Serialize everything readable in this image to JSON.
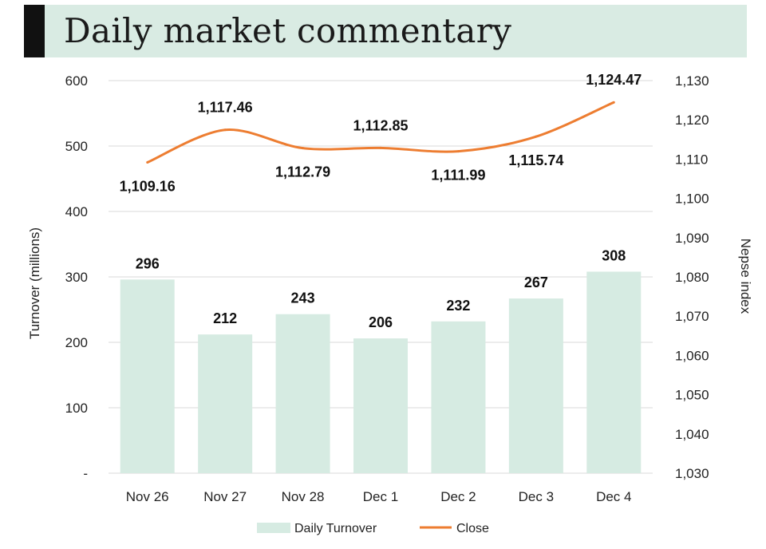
{
  "title": "Daily market commentary",
  "chart_data": {
    "type": "bar+line",
    "categories": [
      "Nov 26",
      "Nov 27",
      "Nov 28",
      "Dec 1",
      "Dec 2",
      "Dec 3",
      "Dec 4"
    ],
    "series": [
      {
        "name": "Daily Turnover",
        "type": "bar",
        "axis": "left",
        "values": [
          296,
          212,
          243,
          206,
          232,
          267,
          308
        ],
        "color": "#d6ebe2"
      },
      {
        "name": "Close",
        "type": "line",
        "axis": "right",
        "values": [
          1109.16,
          1117.46,
          1112.79,
          1112.85,
          1111.99,
          1115.74,
          1124.47
        ],
        "color": "#ed7d31"
      }
    ],
    "bar_labels": [
      "296",
      "212",
      "243",
      "206",
      "232",
      "267",
      "308"
    ],
    "line_labels": [
      "1,109.16",
      "1,117.46",
      "1,112.79",
      "1,112.85",
      "1,111.99",
      "1,115.74",
      "1,124.47"
    ],
    "ylabel": "Turnover (millions)",
    "y2label": "Nepse index",
    "ylim": [
      0,
      600
    ],
    "y2lim": [
      1030,
      1130
    ],
    "yticks": [
      "-",
      "100",
      "200",
      "300",
      "400",
      "500",
      "600"
    ],
    "y2ticks": [
      "1,030",
      "1,040",
      "1,050",
      "1,060",
      "1,070",
      "1,080",
      "1,090",
      "1,100",
      "1,110",
      "1,120",
      "1,130"
    ],
    "grid": true,
    "legend": {
      "position": "bottom",
      "items": [
        "Daily Turnover",
        "Close"
      ]
    }
  }
}
